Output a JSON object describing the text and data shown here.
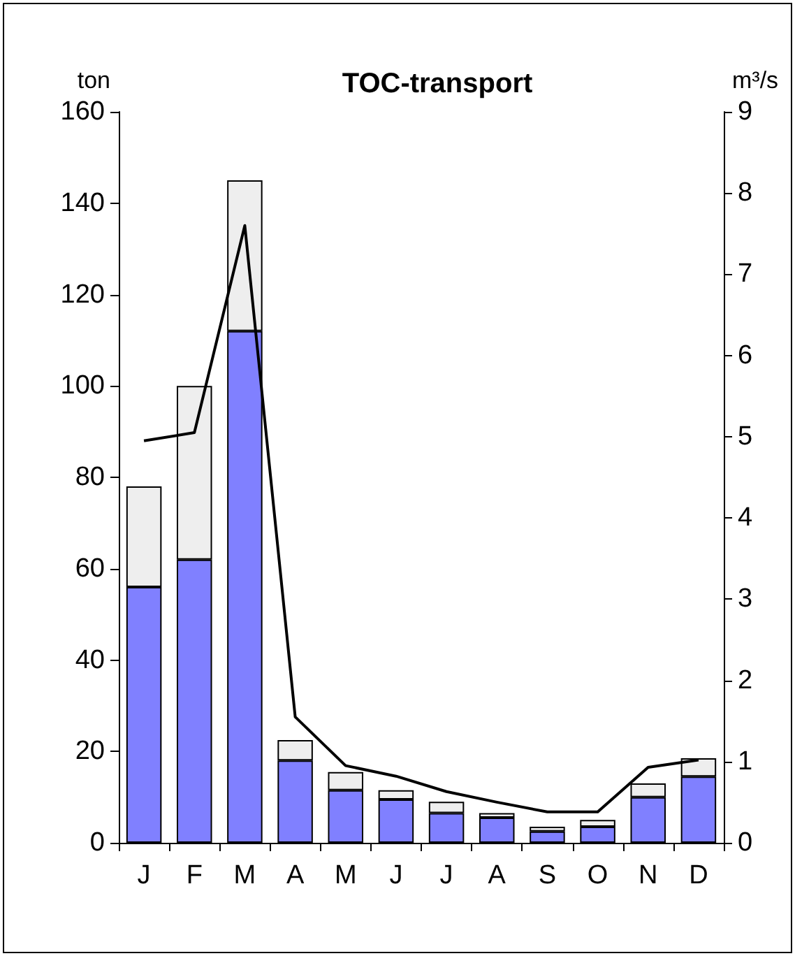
{
  "chart_data": {
    "type": "bar",
    "title": "TOC-transport",
    "ylabel": "ton",
    "y2label": "m³/s",
    "categories": [
      "J",
      "F",
      "M",
      "A",
      "M",
      "J",
      "J",
      "A",
      "S",
      "O",
      "N",
      "D"
    ],
    "stacked": true,
    "series": [
      {
        "color": "#8080ff",
        "values": [
          56,
          62,
          112,
          18,
          11.5,
          9.5,
          6.5,
          5.5,
          2.5,
          3.5,
          10,
          14.5
        ]
      },
      {
        "color": "#eeeeee",
        "values": [
          22,
          38,
          33,
          4.5,
          4,
          2,
          2.5,
          1,
          1,
          1.5,
          3,
          4
        ]
      },
      {
        "type": "line",
        "axis": "y2",
        "color": "#000000",
        "values": [
          4.95,
          5.05,
          7.6,
          1.55,
          0.95,
          0.82,
          0.63,
          0.5,
          0.38,
          0.38,
          0.93,
          1.02
        ]
      }
    ],
    "ylim": [
      0,
      160
    ],
    "yticks": [
      0,
      20,
      40,
      60,
      80,
      100,
      120,
      140,
      160
    ],
    "y2lim": [
      0,
      9
    ],
    "y2ticks": [
      0,
      1,
      2,
      3,
      4,
      5,
      6,
      7,
      8,
      9
    ],
    "grid": false,
    "marker": "none",
    "line_style": "solid"
  }
}
